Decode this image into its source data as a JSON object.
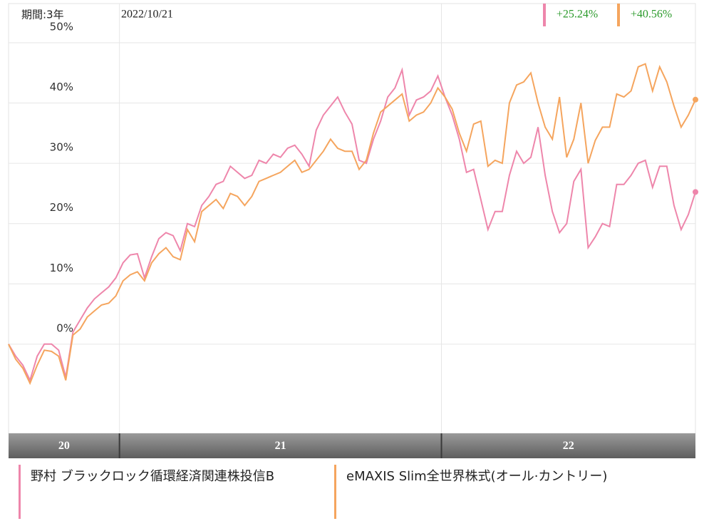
{
  "header": {
    "period": "期間:3年",
    "date": "2022/10/21"
  },
  "chart_data": {
    "type": "line",
    "categories": [
      "20",
      null,
      null,
      null,
      null,
      null,
      null,
      null,
      null,
      null,
      null,
      null,
      null,
      null,
      null,
      null,
      "21",
      null,
      null,
      null,
      null,
      null,
      null,
      null,
      null,
      null,
      null,
      null,
      null,
      null,
      null,
      null,
      null,
      null,
      null,
      null,
      null,
      null,
      null,
      null,
      null,
      null,
      null,
      null,
      null,
      null,
      null,
      null,
      null,
      null,
      null,
      null,
      null,
      null,
      null,
      null,
      null,
      null,
      null,
      null,
      null,
      "22",
      null,
      null,
      null,
      null,
      null,
      null,
      null,
      null,
      null,
      null,
      null,
      null,
      null,
      null,
      null,
      null,
      null,
      null,
      null,
      null,
      null,
      null,
      null,
      null,
      null,
      null,
      null,
      null,
      null,
      null,
      null,
      null,
      null,
      null,
      null
    ],
    "series": [
      {
        "name": "野村 ブラックロック循環経済関連株投信B",
        "color": "#ee86ab",
        "return_label": "+25.24%",
        "values": [
          0,
          -2,
          -3.5,
          -6,
          -2,
          0,
          0,
          -1,
          -5.5,
          2,
          4,
          6,
          7.5,
          8.5,
          9.5,
          11,
          13.5,
          14.8,
          15,
          11,
          14.5,
          17.5,
          18.5,
          18,
          15.5,
          20,
          19.5,
          23,
          24.5,
          26.5,
          27,
          29.5,
          28.5,
          27.5,
          28,
          30.5,
          30,
          31.5,
          31,
          32.5,
          33,
          31.5,
          29.5,
          35.5,
          38,
          39.5,
          41,
          38.5,
          36.5,
          30.5,
          30,
          34,
          37,
          41,
          42.5,
          45.5,
          38,
          40.5,
          41,
          42,
          44.5,
          41,
          38,
          34,
          28.5,
          29,
          24,
          19,
          22,
          22,
          28,
          32,
          30,
          31,
          36,
          28,
          22,
          18.5,
          20,
          27,
          29,
          16,
          17.8,
          20,
          19.5,
          26.5,
          26.5,
          28,
          30,
          30.5,
          26,
          29.5,
          29.5,
          23,
          19,
          21.5,
          25.24
        ]
      },
      {
        "name": "eMAXIS Slim全世界株式(オール·カントリー)",
        "color": "#f5a55e",
        "return_label": "+40.56%",
        "values": [
          0,
          -2.5,
          -4,
          -6.5,
          -3.5,
          -1,
          -1.2,
          -2,
          -6,
          1.5,
          2.5,
          4.5,
          5.5,
          6.5,
          6.8,
          8,
          10.5,
          11.5,
          12,
          10.5,
          13.5,
          15,
          16,
          14.5,
          14,
          19,
          17,
          22,
          23,
          24,
          22.5,
          25,
          24.5,
          23,
          24.5,
          27,
          27.5,
          28,
          28.5,
          29.5,
          30.5,
          28.5,
          29,
          30.5,
          32,
          34,
          32.5,
          32,
          32,
          29,
          30.5,
          35,
          38.5,
          39.5,
          40.5,
          41.5,
          37,
          38,
          38.5,
          40,
          42.5,
          41,
          39,
          35,
          32,
          36.5,
          37,
          29.5,
          30.5,
          30,
          40,
          43,
          43.5,
          45,
          40,
          36,
          34,
          41,
          31,
          34,
          40,
          30,
          33.8,
          36,
          36,
          41.5,
          41,
          42,
          46,
          46.5,
          42,
          46,
          43.5,
          39.5,
          36,
          38,
          40.56
        ]
      }
    ],
    "ylim": [
      -14.8,
      56.5
    ],
    "yticks": [
      {
        "value": 0,
        "label": "0%"
      },
      {
        "value": 10,
        "label": "10%"
      },
      {
        "value": 20,
        "label": "20%"
      },
      {
        "value": 30,
        "label": "30%"
      },
      {
        "value": 40,
        "label": "40%"
      },
      {
        "value": 50,
        "label": "50%"
      }
    ],
    "grid": true
  }
}
